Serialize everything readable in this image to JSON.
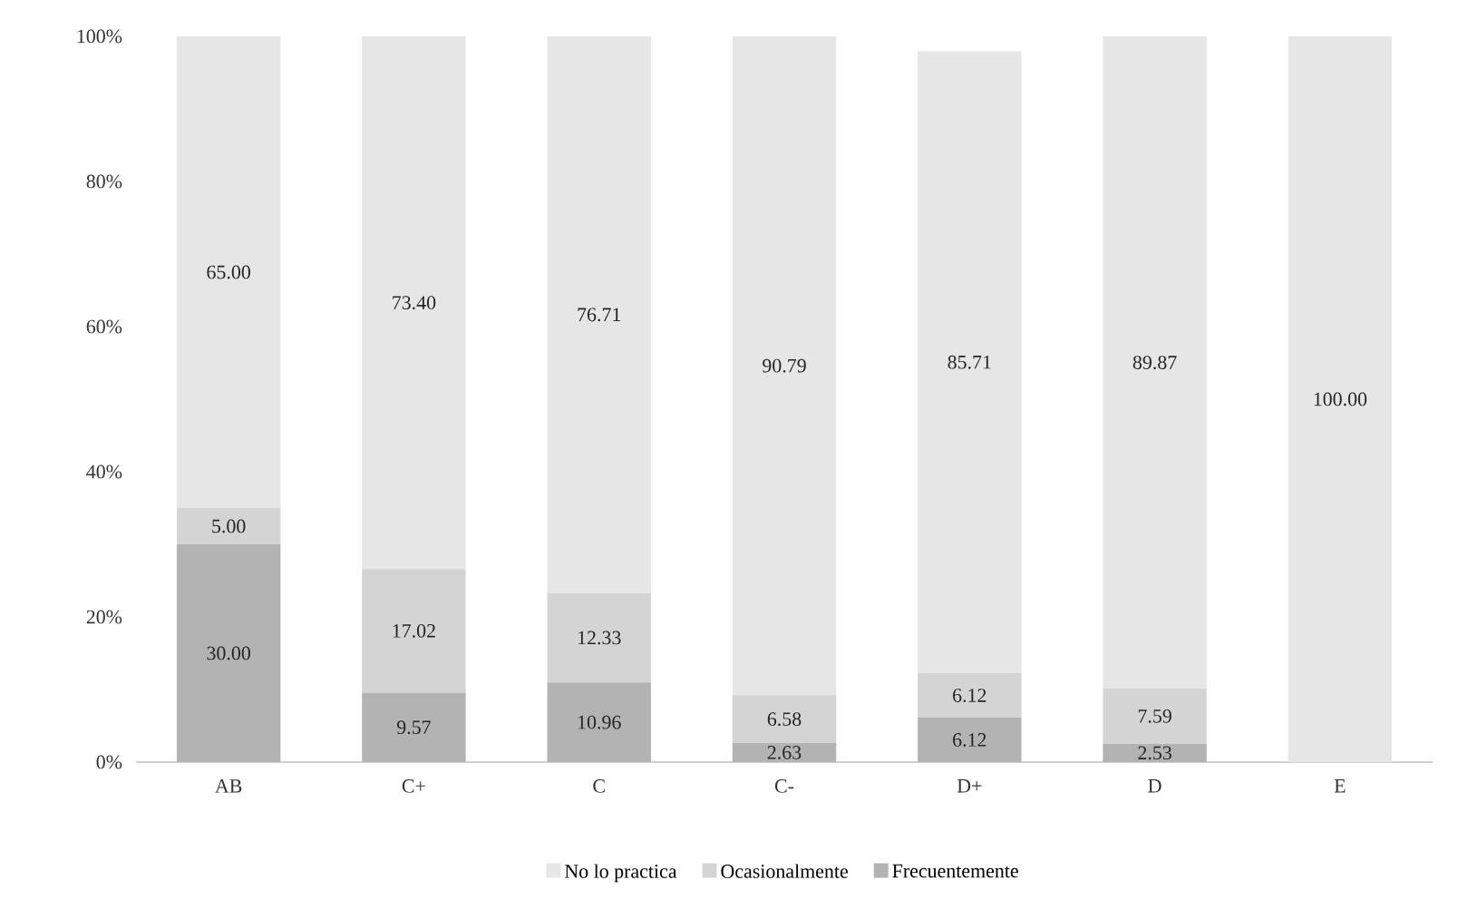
{
  "chart_data": {
    "type": "bar",
    "stacked": true,
    "categories": [
      "AB",
      "C+",
      "C",
      "C-",
      "D+",
      "D",
      "E"
    ],
    "series": [
      {
        "name": "Frecuentemente",
        "color": "#b3b3b3",
        "values": [
          30.0,
          9.57,
          10.96,
          2.63,
          6.12,
          2.53,
          0
        ],
        "value_labels": [
          "30.00",
          "9.57",
          "10.96",
          "2.63",
          "6.12",
          "2.53",
          null
        ]
      },
      {
        "name": "Ocasionalmente",
        "color": "#d4d4d4",
        "values": [
          5.0,
          17.02,
          12.33,
          6.58,
          6.12,
          7.59,
          0
        ],
        "value_labels": [
          "5.00",
          "17.02",
          "12.33",
          "6.58",
          "6.12",
          "7.59",
          null
        ]
      },
      {
        "name": "No lo practica",
        "color": "#e6e6e6",
        "values": [
          65.0,
          73.4,
          76.71,
          90.79,
          85.71,
          89.87,
          100.0
        ],
        "value_labels": [
          "65.00",
          "73.40",
          "76.71",
          "90.79",
          "85.71",
          "89.87",
          "100.00"
        ]
      }
    ],
    "ylim": [
      0,
      100
    ],
    "yticks": [
      {
        "value": 0,
        "label": "0%"
      },
      {
        "value": 20,
        "label": "20%"
      },
      {
        "value": 40,
        "label": "40%"
      },
      {
        "value": 60,
        "label": "60%"
      },
      {
        "value": 80,
        "label": "80%"
      },
      {
        "value": 100,
        "label": "100%"
      }
    ],
    "legend": "bottom",
    "grid": false
  }
}
